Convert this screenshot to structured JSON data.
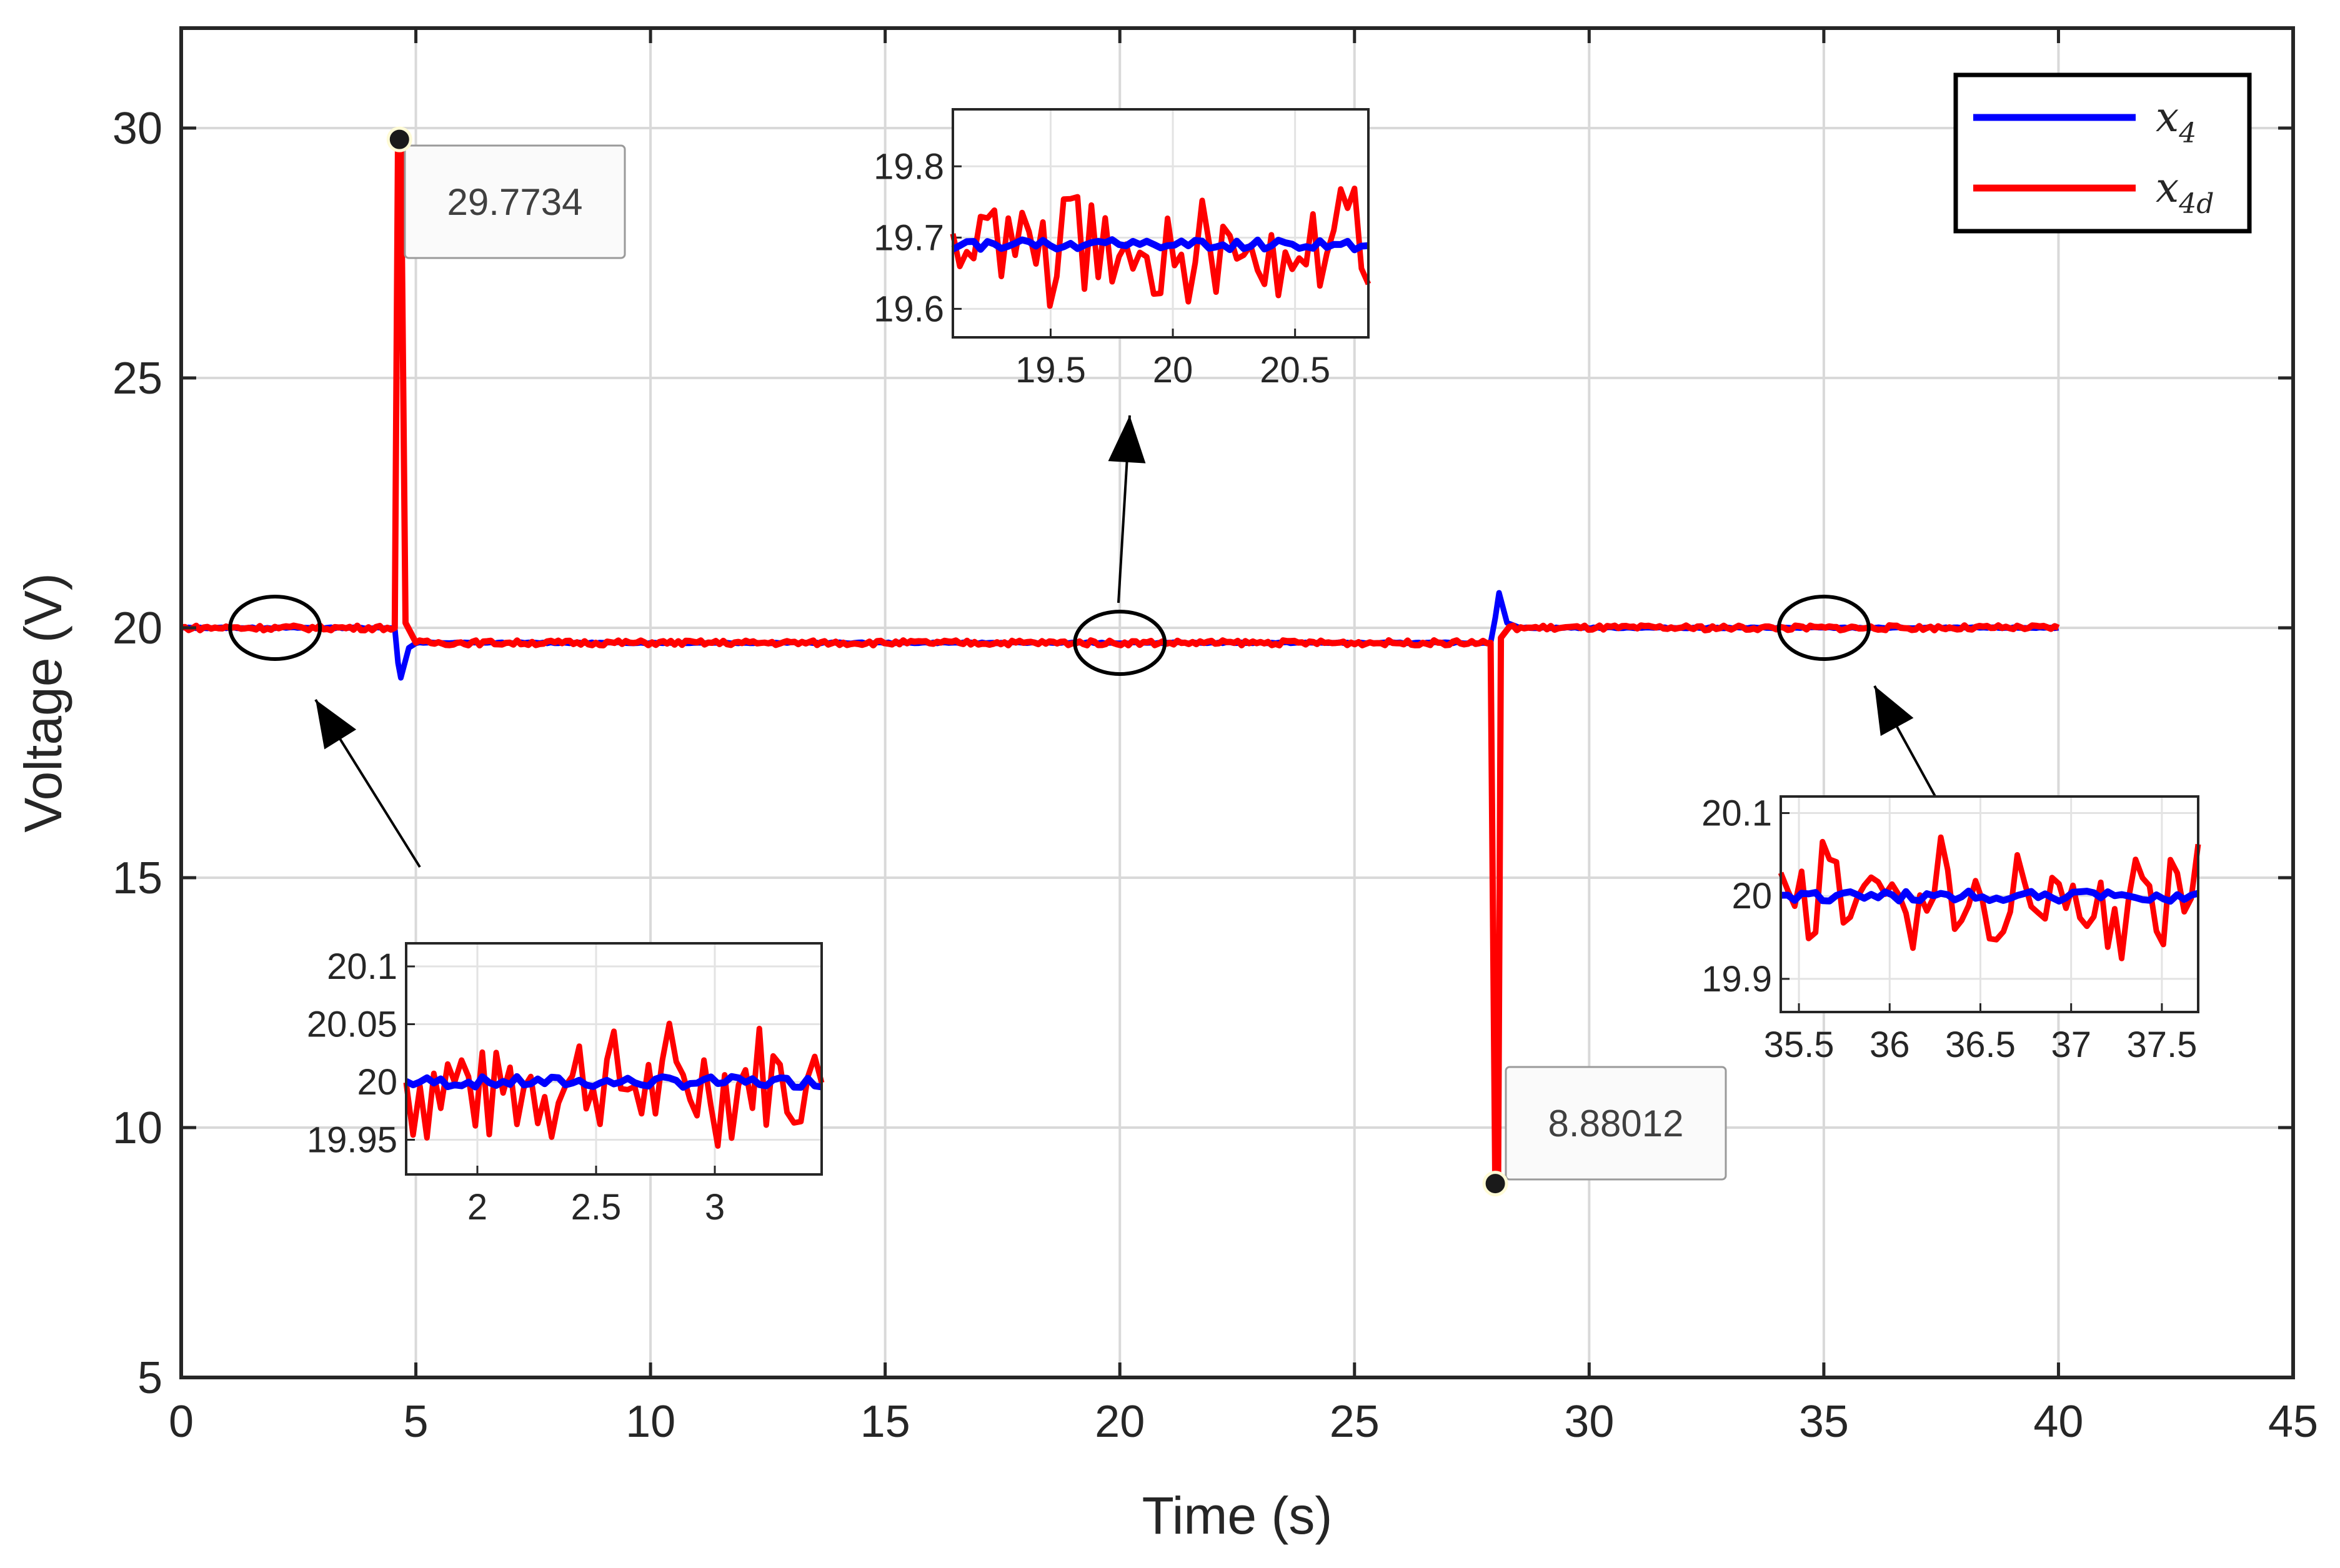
{
  "chart_data": {
    "type": "line",
    "title": "",
    "xlabel": "Time (s)",
    "ylabel": "Voltage (V)",
    "xlim": [
      0,
      45
    ],
    "ylim": [
      5,
      32
    ],
    "xticks": [
      0,
      5,
      10,
      15,
      20,
      25,
      30,
      35,
      40,
      45
    ],
    "yticks": [
      5,
      10,
      15,
      20,
      25,
      30
    ],
    "grid": true,
    "legend_position": "top-right",
    "colors": {
      "x4": "#0000ff",
      "x4d": "#ff0000",
      "grid": "#d9d9d9",
      "axis": "#262626"
    },
    "series": [
      {
        "name": "x4",
        "legend_base": "x",
        "legend_sub": "4",
        "color": "#0000ff",
        "points": [
          [
            0,
            20.0
          ],
          [
            4.55,
            20.0
          ],
          [
            4.62,
            19.3
          ],
          [
            4.68,
            19.0
          ],
          [
            4.85,
            19.6
          ],
          [
            5.0,
            19.7
          ],
          [
            19.7,
            19.7
          ],
          [
            27.9,
            19.7
          ],
          [
            28.0,
            20.2
          ],
          [
            28.08,
            20.7
          ],
          [
            28.25,
            20.1
          ],
          [
            28.5,
            20.0
          ],
          [
            40.0,
            20.0
          ]
        ]
      },
      {
        "name": "x4d",
        "legend_base": "x",
        "legend_sub": "4d",
        "color": "#ff0000",
        "points": [
          [
            0,
            20.0
          ],
          [
            4.55,
            20.0
          ],
          [
            4.62,
            29.7734
          ],
          [
            4.68,
            29.7734
          ],
          [
            4.78,
            20.1
          ],
          [
            5.0,
            19.7
          ],
          [
            19.7,
            19.7
          ],
          [
            27.9,
            19.7
          ],
          [
            28.0,
            8.88012
          ],
          [
            28.06,
            8.88012
          ],
          [
            28.12,
            19.8
          ],
          [
            28.3,
            20.0
          ],
          [
            40.0,
            20.0
          ]
        ]
      }
    ],
    "datatips": [
      {
        "x": 4.65,
        "y": 29.7734,
        "label": "29.7734"
      },
      {
        "x": 28.0,
        "y": 8.88012,
        "label": "8.88012"
      }
    ],
    "zoom_ellipses": [
      {
        "x": 2.0,
        "y": 20.0
      },
      {
        "x": 20.0,
        "y": 19.7
      },
      {
        "x": 35.0,
        "y": 20.0
      }
    ],
    "insets": [
      {
        "id": "inset-1",
        "xlim": [
          1.7,
          3.45
        ],
        "ylim": [
          19.92,
          20.12
        ],
        "xticks": [
          "2",
          "2.5",
          "3"
        ],
        "xtick_values": [
          2,
          2.5,
          3
        ],
        "yticks": [
          "20.1",
          "20.05",
          "20",
          "19.95"
        ],
        "ytick_values": [
          20.1,
          20.05,
          20,
          19.95
        ],
        "x4_level": 20.0,
        "x4d_level": 20.0,
        "noise_amplitude": 0.06
      },
      {
        "id": "inset-2",
        "xlim": [
          19.1,
          20.8
        ],
        "ylim": [
          19.56,
          19.88
        ],
        "xticks": [
          "19.5",
          "20",
          "20.5"
        ],
        "xtick_values": [
          19.5,
          20,
          20.5
        ],
        "yticks": [
          "19.8",
          "19.7",
          "19.6"
        ],
        "ytick_values": [
          19.8,
          19.7,
          19.6
        ],
        "x4_level": 19.69,
        "x4d_level": 19.69,
        "noise_amplitude": 0.09
      },
      {
        "id": "inset-3",
        "xlim": [
          35.4,
          37.7
        ],
        "ylim": [
          19.86,
          20.12
        ],
        "xticks": [
          "35.5",
          "36",
          "36.5",
          "37",
          "37.5"
        ],
        "xtick_values": [
          35.5,
          36,
          36.5,
          37,
          37.5
        ],
        "yticks": [
          "20.1",
          "20",
          "19.9"
        ],
        "ytick_values": [
          20.1,
          20,
          19.9
        ],
        "x4_level": 20.0,
        "x4d_level": 20.0,
        "noise_amplitude": 0.08
      }
    ]
  }
}
